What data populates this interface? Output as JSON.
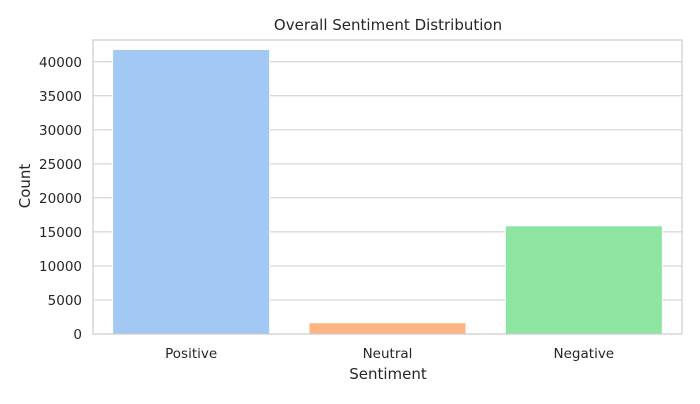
{
  "chart_data": {
    "type": "bar",
    "title": "Overall Sentiment Distribution",
    "xlabel": "Sentiment",
    "ylabel": "Count",
    "categories": [
      "Positive",
      "Neutral",
      "Negative"
    ],
    "values": [
      41800,
      1650,
      15900
    ],
    "colors": [
      "#a1c9f4",
      "#ffb482",
      "#8de5a1"
    ],
    "ylim": [
      0,
      43200
    ],
    "yticks": [
      0,
      5000,
      10000,
      15000,
      20000,
      25000,
      30000,
      35000,
      40000
    ],
    "grid": "horizontal",
    "legend": "none"
  }
}
